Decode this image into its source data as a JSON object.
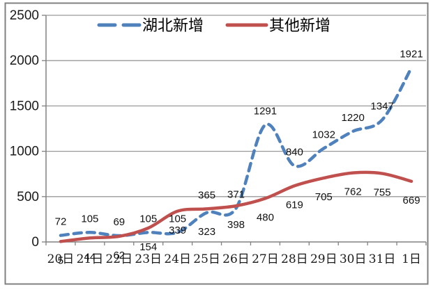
{
  "page": {
    "background": "#ffffff",
    "border_color": "#808080"
  },
  "chart_data": {
    "type": "line",
    "title": "",
    "xlabel": "",
    "ylabel": "",
    "categories": [
      "20日",
      "21日",
      "22日",
      "23日",
      "24日",
      "25日",
      "26日",
      "27日",
      "28日",
      "29日",
      "30日",
      "31日",
      "1日"
    ],
    "series": [
      {
        "name": "湖北新增",
        "color": "#4F81BD",
        "line_style": "dashed",
        "values": [
          72,
          105,
          69,
          105,
          105,
          323,
          371,
          1291,
          840,
          1032,
          1220,
          1347,
          1921
        ],
        "labels": [
          "72",
          "105",
          "69",
          "105",
          "105",
          "323",
          "371",
          "1291",
          "840",
          "1032",
          "1220",
          "1347",
          "1921"
        ],
        "label_placement": [
          "above",
          "above",
          "above",
          "above",
          "above",
          "below",
          "above",
          "above",
          "above",
          "above",
          "above",
          "above",
          "above"
        ]
      },
      {
        "name": "其他新增",
        "color": "#C0504D",
        "line_style": "solid",
        "values": [
          5,
          44,
          62,
          154,
          339,
          365,
          398,
          480,
          619,
          705,
          762,
          755,
          669
        ],
        "labels": [
          "5",
          "44",
          "62",
          "154",
          "339",
          "365",
          "398",
          "480",
          "619",
          "705",
          "762",
          "755",
          "669"
        ],
        "label_placement": [
          "below",
          "below",
          "below",
          "below",
          "below",
          "above",
          "below",
          "below",
          "below",
          "below",
          "below",
          "below",
          "below"
        ]
      }
    ],
    "y_axis": {
      "min": 0,
      "max": 2500,
      "step": 500,
      "ticks": [
        0,
        500,
        1000,
        1500,
        2000,
        2500
      ]
    },
    "grid": true,
    "gridline_color": "#999999",
    "axis_color": "#808080",
    "legend_position": "top-center",
    "smoothed_lines": true
  }
}
